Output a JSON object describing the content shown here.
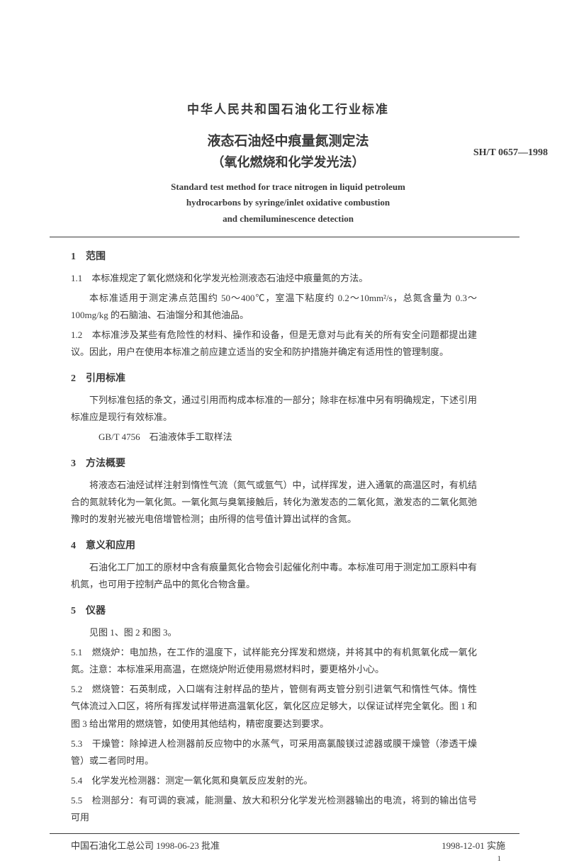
{
  "header": {
    "org": "中华人民共和国石油化工行业标准",
    "title_cn_1": "液态石油烃中痕量氮测定法",
    "title_cn_2": "（氧化燃烧和化学发光法）",
    "std_code": "SH/T 0657—1998",
    "title_en_1": "Standard test method for trace nitrogen in liquid petroleum",
    "title_en_2": "hydrocarbons by syringe/inlet oxidative combustion",
    "title_en_3": "and chemiluminescence detection"
  },
  "sections": {
    "s1": {
      "num": "1",
      "title": "范围"
    },
    "s2": {
      "num": "2",
      "title": "引用标准"
    },
    "s3": {
      "num": "3",
      "title": "方法概要"
    },
    "s4": {
      "num": "4",
      "title": "意义和应用"
    },
    "s5": {
      "num": "5",
      "title": "仪器"
    }
  },
  "body": {
    "p1_1": "1.1　本标准规定了氧化燃烧和化学发光检测液态石油烃中痕量氮的方法。",
    "p1_1b": "本标准适用于测定沸点范围约 50～400℃，室温下粘度约 0.2～10mm²/s，总氮含量为 0.3～100mg/kg 的石脑油、石油馏分和其他油品。",
    "p1_2": "1.2　本标准涉及某些有危险性的材料、操作和设备，但是无意对与此有关的所有安全问题都提出建议。因此，用户在使用本标准之前应建立适当的安全和防护措施并确定有适用性的管理制度。",
    "p2_intro": "下列标准包括的条文，通过引用而构成本标准的一部分；除非在标准中另有明确规定，下述引用标准应是现行有效标准。",
    "p2_ref": "GB/T 4756　石油液体手工取样法",
    "p3_1": "将液态石油烃试样注射到惰性气流（氮气或氩气）中，试样挥发，进入通氧的高温区时，有机结合的氮就转化为一氧化氮。一氧化氮与臭氧接触后，转化为激发态的二氧化氮，激发态的二氧化氮弛豫时的发射光被光电倍增管检测；由所得的信号值计算出试样的含氮。",
    "p4_1": "石油化工厂加工的原材中含有痕量氮化合物会引起催化剂中毒。本标准可用于测定加工原料中有机氮，也可用于控制产品中的氮化合物含量。",
    "p5_intro": "见图 1、图 2 和图 3。",
    "p5_1": "5.1　燃烧炉：电加热，在工作的温度下，试样能充分挥发和燃烧，并将其中的有机氮氧化成一氧化氮。注意：本标准采用高温，在燃烧炉附近使用易燃材料时，要更格外小心。",
    "p5_2": "5.2　燃烧管：石英制成，入口端有注射样品的垫片，管侧有两支管分别引进氧气和惰性气体。惰性气体流过入口区，将所有挥发试样带进高温氧化区，氧化区应足够大，以保证试样完全氧化。图 1 和图 3 给出常用的燃烧管，如使用其他结构，精密度要达到要求。",
    "p5_3": "5.3　干燥管：除掉进人检测器前反应物中的水蒸气，可采用高氯酸镁过滤器或膜干燥管（渗透干燥管）或二者同时用。",
    "p5_4": "5.4　化学发光检测器：测定一氧化氮和臭氧反应发射的光。",
    "p5_5": "5.5　检测部分：有可调的衰减，能测量、放大和积分化学发光检测器输出的电流，将到的输出信号可用"
  },
  "footer": {
    "left": "中国石油化工总公司 1998-06-23 批准",
    "right": "1998-12-01 实施",
    "page": "1"
  },
  "style": {
    "text_color": "#3a3a3a",
    "bg_color": "#ffffff",
    "body_fontsize": 13,
    "heading_fontsize": 14,
    "line_height": 1.85
  }
}
